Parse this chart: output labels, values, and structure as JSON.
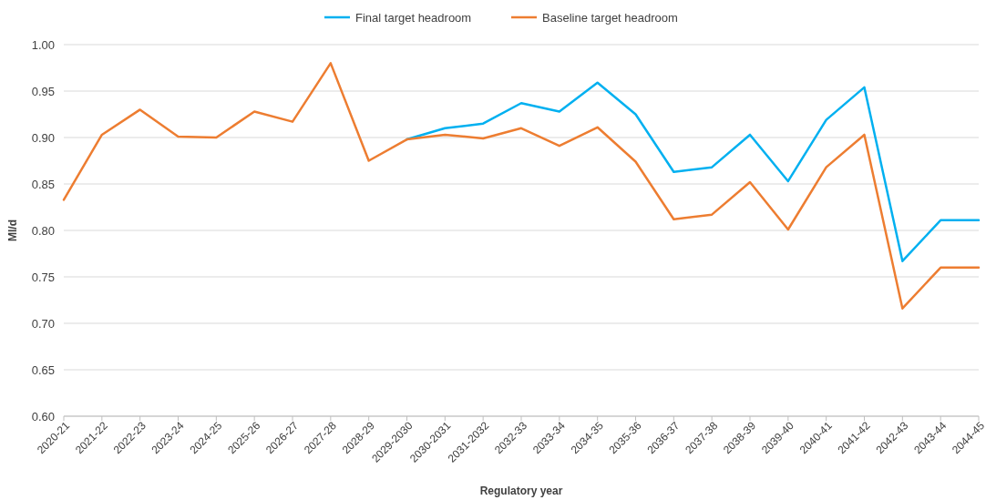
{
  "chart_data": {
    "type": "line",
    "xlabel": "Regulatory year",
    "ylabel": "Ml/d",
    "categories": [
      "2020-21",
      "2021-22",
      "2022-23",
      "2023-24",
      "2024-25",
      "2025-26",
      "2026-27",
      "2027-28",
      "2028-29",
      "2029-2030",
      "2030-2031",
      "2031-2032",
      "2032-33",
      "2033-34",
      "2034-35",
      "2035-36",
      "2036-37",
      "2037-38",
      "2038-39",
      "2039-40",
      "2040-41",
      "2041-42",
      "2042-43",
      "2043-44",
      "2044-45"
    ],
    "series": [
      {
        "name": "Final target headroom",
        "color": "#00b0f0",
        "values": [
          null,
          null,
          null,
          null,
          null,
          null,
          null,
          null,
          null,
          0.898,
          0.91,
          0.915,
          0.937,
          0.928,
          0.959,
          0.925,
          0.863,
          0.868,
          0.903,
          0.853,
          0.919,
          0.954,
          0.767,
          0.811,
          0.811
        ]
      },
      {
        "name": "Baseline target headroom",
        "color": "#ed7d31",
        "values": [
          0.833,
          0.903,
          0.93,
          0.901,
          0.9,
          0.928,
          0.917,
          0.98,
          0.875,
          0.898,
          0.903,
          0.899,
          0.91,
          0.891,
          0.911,
          0.874,
          0.812,
          0.817,
          0.852,
          0.801,
          0.868,
          0.903,
          0.716,
          0.76,
          0.76
        ]
      }
    ],
    "ylim": [
      0.6,
      1.0
    ],
    "yticks": [
      {
        "value": 0.6,
        "label": "0.60"
      },
      {
        "value": 0.65,
        "label": "0.65"
      },
      {
        "value": 0.7,
        "label": "0.70"
      },
      {
        "value": 0.75,
        "label": "0.75"
      },
      {
        "value": 0.8,
        "label": "0.80"
      },
      {
        "value": 0.85,
        "label": "0.85"
      },
      {
        "value": 0.9,
        "label": "0.90"
      },
      {
        "value": 0.95,
        "label": "0.95"
      },
      {
        "value": 1.0,
        "label": "1.00"
      }
    ],
    "grid": "y",
    "legend": "top",
    "marker": "none",
    "line_style": "solid"
  }
}
